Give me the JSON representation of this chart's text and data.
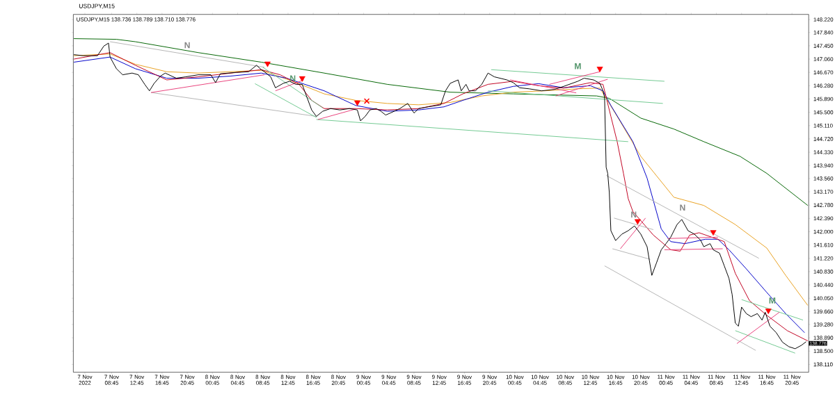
{
  "chart_data": {
    "type": "line",
    "title": "USDJPY,M15",
    "subtitle": "USDJPY,M15 138.736 138.789 138.710 138.776",
    "xlim": [
      "2022-11-07T02:40",
      "2022-11-11T23:24"
    ],
    "ylim": [
      137.88,
      148.37
    ],
    "xticks": [
      {
        "value": "2022-11-07T04:30",
        "label": "7 Nov 2022"
      },
      {
        "value": "2022-11-07T08:45",
        "label": "7 Nov 08:45"
      },
      {
        "value": "2022-11-07T12:45",
        "label": "7 Nov 12:45"
      },
      {
        "value": "2022-11-07T16:45",
        "label": "7 Nov 16:45"
      },
      {
        "value": "2022-11-07T20:45",
        "label": "7 Nov 20:45"
      },
      {
        "value": "2022-11-08T00:45",
        "label": "8 Nov 00:45"
      },
      {
        "value": "2022-11-08T04:45",
        "label": "8 Nov 04:45"
      },
      {
        "value": "2022-11-08T08:45",
        "label": "8 Nov 08:45"
      },
      {
        "value": "2022-11-08T12:45",
        "label": "8 Nov 12:45"
      },
      {
        "value": "2022-11-08T16:45",
        "label": "8 Nov 16:45"
      },
      {
        "value": "2022-11-08T20:45",
        "label": "8 Nov 20:45"
      },
      {
        "value": "2022-11-09T00:45",
        "label": "9 Nov 00:45"
      },
      {
        "value": "2022-11-09T04:45",
        "label": "9 Nov 04:45"
      },
      {
        "value": "2022-11-09T08:45",
        "label": "9 Nov 08:45"
      },
      {
        "value": "2022-11-09T12:45",
        "label": "9 Nov 12:45"
      },
      {
        "value": "2022-11-09T16:45",
        "label": "9 Nov 16:45"
      },
      {
        "value": "2022-11-09T20:45",
        "label": "9 Nov 20:45"
      },
      {
        "value": "2022-11-10T00:45",
        "label": "10 Nov 00:45"
      },
      {
        "value": "2022-11-10T04:45",
        "label": "10 Nov 04:45"
      },
      {
        "value": "2022-11-10T08:45",
        "label": "10 Nov 08:45"
      },
      {
        "value": "2022-11-10T12:45",
        "label": "10 Nov 12:45"
      },
      {
        "value": "2022-11-10T16:45",
        "label": "10 Nov 16:45"
      },
      {
        "value": "2022-11-10T20:45",
        "label": "10 Nov 20:45"
      },
      {
        "value": "2022-11-11T00:45",
        "label": "11 Nov 00:45"
      },
      {
        "value": "2022-11-11T04:45",
        "label": "11 Nov 04:45"
      },
      {
        "value": "2022-11-11T08:45",
        "label": "11 Nov 08:45"
      },
      {
        "value": "2022-11-11T12:45",
        "label": "11 Nov 12:45"
      },
      {
        "value": "2022-11-11T16:45",
        "label": "11 Nov 16:45"
      },
      {
        "value": "2022-11-11T20:45",
        "label": "11 Nov 20:45"
      }
    ],
    "yticks": [
      {
        "value": 138.11,
        "label": "138.110"
      },
      {
        "value": 138.5,
        "label": "138.500"
      },
      {
        "value": 138.89,
        "label": "138.890"
      },
      {
        "value": 139.28,
        "label": "139.280"
      },
      {
        "value": 139.66,
        "label": "139.660"
      },
      {
        "value": 140.05,
        "label": "140.050"
      },
      {
        "value": 140.44,
        "label": "140.440"
      },
      {
        "value": 140.83,
        "label": "140.830"
      },
      {
        "value": 141.22,
        "label": "141.220"
      },
      {
        "value": 141.61,
        "label": "141.610"
      },
      {
        "value": 142.0,
        "label": "142.000"
      },
      {
        "value": 142.39,
        "label": "142.390"
      },
      {
        "value": 142.78,
        "label": "142.780"
      },
      {
        "value": 143.17,
        "label": "143.170"
      },
      {
        "value": 143.56,
        "label": "143.560"
      },
      {
        "value": 143.94,
        "label": "143.940"
      },
      {
        "value": 144.33,
        "label": "144.330"
      },
      {
        "value": 144.72,
        "label": "144.720"
      },
      {
        "value": 145.11,
        "label": "145.110"
      },
      {
        "value": 145.5,
        "label": "145.500"
      },
      {
        "value": 145.89,
        "label": "145.890"
      },
      {
        "value": 146.28,
        "label": "146.280"
      },
      {
        "value": 146.67,
        "label": "146.670"
      },
      {
        "value": 147.06,
        "label": "147.060"
      },
      {
        "value": 147.45,
        "label": "147.450"
      },
      {
        "value": 147.84,
        "label": "147.840"
      },
      {
        "value": 148.22,
        "label": "148.220"
      }
    ],
    "series": [
      {
        "color": "#006400",
        "x": [
          "2022-11-07T02:45",
          "2022-11-07T09:30",
          "2022-11-07T12:30",
          "2022-11-07T22:30",
          "2022-11-08T08:30",
          "2022-11-08T18:30",
          "2022-11-09T04:30",
          "2022-11-09T14:30",
          "2022-11-10T00:30",
          "2022-11-10T13:45",
          "2022-11-10T15:45",
          "2022-11-10T20:45",
          "2022-11-11T02:00",
          "2022-11-11T06:45",
          "2022-11-11T12:30",
          "2022-11-11T16:45",
          "2022-11-11T23:15"
        ],
        "values": [
          147.66,
          147.64,
          147.57,
          147.25,
          146.97,
          146.65,
          146.32,
          146.09,
          146.04,
          145.98,
          145.91,
          145.33,
          145.01,
          144.64,
          144.21,
          143.71,
          142.77
        ]
      },
      {
        "color": "#e8a020",
        "x": [
          "2022-11-07T02:45",
          "2022-11-07T08:30",
          "2022-11-07T12:30",
          "2022-11-07T17:30",
          "2022-11-07T22:30",
          "2022-11-08T08:30",
          "2022-11-08T13:30",
          "2022-11-08T18:30",
          "2022-11-08T23:30",
          "2022-11-09T04:30",
          "2022-11-09T09:30",
          "2022-11-09T14:30",
          "2022-11-09T19:30",
          "2022-11-10T00:30",
          "2022-11-10T05:30",
          "2022-11-10T10:45",
          "2022-11-10T14:15",
          "2022-11-10T17:00",
          "2022-11-10T20:45",
          "2022-11-11T02:00",
          "2022-11-11T06:45",
          "2022-11-11T11:45",
          "2022-11-11T16:45",
          "2022-11-11T19:45",
          "2022-11-11T23:15"
        ],
        "values": [
          147.16,
          147.21,
          146.91,
          146.69,
          146.65,
          146.73,
          146.41,
          146.04,
          145.85,
          145.76,
          145.72,
          145.79,
          145.98,
          146.09,
          146.13,
          146.19,
          146.21,
          145.38,
          144.21,
          143.01,
          142.77,
          142.21,
          141.52,
          140.72,
          139.84
        ]
      },
      {
        "color": "#0000c8",
        "x": [
          "2022-11-07T02:45",
          "2022-11-07T08:30",
          "2022-11-07T12:30",
          "2022-11-07T17:30",
          "2022-11-07T22:30",
          "2022-11-08T03:30",
          "2022-11-08T08:30",
          "2022-11-08T12:30",
          "2022-11-08T18:30",
          "2022-11-08T23:30",
          "2022-11-09T04:30",
          "2022-11-09T09:30",
          "2022-11-09T13:30",
          "2022-11-09T16:30",
          "2022-11-09T20:30",
          "2022-11-10T00:30",
          "2022-11-10T04:30",
          "2022-11-10T08:30",
          "2022-11-10T12:45",
          "2022-11-10T14:45",
          "2022-11-10T16:00",
          "2022-11-10T19:30",
          "2022-11-10T21:45",
          "2022-11-11T00:00",
          "2022-11-11T01:30",
          "2022-11-11T03:45",
          "2022-11-11T07:00",
          "2022-11-11T09:00",
          "2022-11-11T10:45",
          "2022-11-11T13:30",
          "2022-11-11T16:45",
          "2022-11-11T19:45",
          "2022-11-11T22:45"
        ],
        "values": [
          146.97,
          147.12,
          146.78,
          146.5,
          146.5,
          146.56,
          146.65,
          146.5,
          146.13,
          145.7,
          145.53,
          145.57,
          145.66,
          145.85,
          146.09,
          146.26,
          146.34,
          146.22,
          146.28,
          146.13,
          145.7,
          144.64,
          143.57,
          142.08,
          141.71,
          141.65,
          141.78,
          141.78,
          141.47,
          140.91,
          140.22,
          139.6,
          139.04
        ]
      },
      {
        "color": "#c00020",
        "x": [
          "2022-11-07T02:45",
          "2022-11-07T08:30",
          "2022-11-07T12:30",
          "2022-11-07T17:30",
          "2022-11-07T22:30",
          "2022-11-08T08:30",
          "2022-11-08T11:30",
          "2022-11-08T14:30",
          "2022-11-08T16:30",
          "2022-11-08T18:30",
          "2022-11-08T23:30",
          "2022-11-09T04:30",
          "2022-11-09T09:30",
          "2022-11-09T13:30",
          "2022-11-09T16:30",
          "2022-11-09T20:30",
          "2022-11-10T00:30",
          "2022-11-10T04:30",
          "2022-11-10T08:30",
          "2022-11-10T12:45",
          "2022-11-10T14:45",
          "2022-11-10T16:00",
          "2022-11-10T17:00",
          "2022-11-10T18:00",
          "2022-11-10T18:45",
          "2022-11-10T19:30",
          "2022-11-10T22:45",
          "2022-11-11T01:30",
          "2022-11-11T03:00",
          "2022-11-11T04:30",
          "2022-11-11T06:00",
          "2022-11-11T08:00",
          "2022-11-11T10:00",
          "2022-11-11T11:45",
          "2022-11-11T14:00",
          "2022-11-11T16:45",
          "2022-11-11T20:00",
          "2022-11-11T23:15"
        ],
        "values": [
          147.06,
          147.25,
          146.88,
          146.45,
          146.54,
          146.75,
          146.6,
          146.32,
          145.85,
          145.61,
          145.61,
          145.57,
          145.61,
          145.76,
          146.04,
          146.32,
          146.41,
          146.28,
          146.21,
          146.37,
          146.32,
          145.38,
          144.64,
          143.71,
          142.97,
          142.59,
          141.9,
          141.47,
          141.43,
          141.9,
          141.97,
          141.84,
          141.71,
          140.78,
          139.98,
          139.55,
          139.1,
          138.8
        ]
      },
      {
        "name": "N",
        "color": "#b4b4b4",
        "x": [
          "2022-11-07T08:30",
          "2022-11-08T09:00"
        ],
        "values": [
          147.57,
          146.82
        ]
      },
      {
        "color": "#b4b4b4",
        "x": [
          "2022-11-07T15:00",
          "2022-11-08T17:15"
        ],
        "values": [
          146.08,
          145.38
        ]
      },
      {
        "name": "N",
        "color": "#b4b4b4",
        "x": [
          "2022-11-10T15:15",
          "2022-11-11T15:30"
        ],
        "values": [
          143.65,
          141.22
        ]
      },
      {
        "name": "N",
        "color": "#b4b4b4",
        "x": [
          "2022-11-10T16:30",
          "2022-11-10T22:45"
        ],
        "values": [
          142.4,
          142.06
        ]
      },
      {
        "color": "#b4b4b4",
        "x": [
          "2022-11-10T16:15",
          "2022-11-10T22:15"
        ],
        "values": [
          141.5,
          141.19
        ]
      },
      {
        "color": "#b4b4b4",
        "x": [
          "2022-11-10T15:00",
          "2022-11-11T15:00"
        ],
        "values": [
          141.0,
          138.52
        ]
      },
      {
        "name": "N",
        "color": "#70c890",
        "x": [
          "2022-11-08T08:45",
          "2022-11-08T18:15"
        ],
        "values": [
          146.82,
          145.63
        ]
      },
      {
        "color": "#70c890",
        "x": [
          "2022-11-08T07:30",
          "2022-11-08T17:15"
        ],
        "values": [
          146.34,
          145.35
        ]
      },
      {
        "color": "#70c890",
        "x": [
          "2022-11-08T17:15",
          "2022-11-10T18:45"
        ],
        "values": [
          145.29,
          144.64
        ]
      },
      {
        "name": "M",
        "color": "#70c890",
        "x": [
          "2022-11-09T21:00",
          "2022-11-11T00:30"
        ],
        "values": [
          146.75,
          146.41
        ]
      },
      {
        "color": "#70c890",
        "x": [
          "2022-11-09T20:30",
          "2022-11-11T00:15"
        ],
        "values": [
          146.13,
          145.76
        ]
      },
      {
        "name": "M",
        "color": "#70c890",
        "x": [
          "2022-11-11T12:45",
          "2022-11-11T22:30"
        ],
        "values": [
          140.01,
          139.41
        ]
      },
      {
        "color": "#70c890",
        "x": [
          "2022-11-11T11:45",
          "2022-11-11T21:15"
        ],
        "values": [
          139.1,
          138.44
        ]
      },
      {
        "color": "#e8407a",
        "x": [
          "2022-11-07T15:00",
          "2022-11-08T09:00"
        ],
        "values": [
          146.08,
          146.6
        ]
      },
      {
        "color": "#e8407a",
        "x": [
          "2022-11-08T10:45",
          "2022-11-08T15:15"
        ],
        "values": [
          146.13,
          146.45
        ]
      },
      {
        "color": "#e8407a",
        "x": [
          "2022-11-08T17:30",
          "2022-11-08T23:45"
        ],
        "values": [
          145.29,
          145.61
        ]
      },
      {
        "color": "#e8407a",
        "x": [
          "2022-11-10T06:15",
          "2022-11-10T14:15"
        ],
        "values": [
          146.32,
          146.69
        ]
      },
      {
        "color": "#e8407a",
        "x": [
          "2022-11-10T07:15",
          "2022-11-10T15:30"
        ],
        "values": [
          145.98,
          146.47
        ]
      },
      {
        "color": "#e8407a",
        "x": [
          "2022-11-10T00:00",
          "2022-11-10T10:30"
        ],
        "values": [
          146.45,
          146.07
        ]
      },
      {
        "color": "#e8407a",
        "x": [
          "2022-11-10T17:30",
          "2022-11-10T21:30"
        ],
        "values": [
          141.5,
          142.4
        ]
      },
      {
        "color": "#e8407a",
        "x": [
          "2022-11-11T01:00",
          "2022-11-11T09:00"
        ],
        "values": [
          141.8,
          141.84
        ]
      },
      {
        "color": "#e8407a",
        "x": [
          "2022-11-11T00:30",
          "2022-11-11T09:45"
        ],
        "values": [
          141.47,
          141.5
        ]
      },
      {
        "color": "#e8407a",
        "x": [
          "2022-11-11T12:00",
          "2022-11-11T18:45"
        ],
        "values": [
          138.72,
          139.64
        ]
      },
      {
        "color": "#000000",
        "x": [
          "2022-11-07T02:45",
          "2022-11-07T04:15",
          "2022-11-07T06:30",
          "2022-11-07T07:30",
          "2022-11-07T08:15",
          "2022-11-07T08:30",
          "2022-11-07T09:30",
          "2022-11-07T10:30",
          "2022-11-07T12:00",
          "2022-11-07T13:00",
          "2022-11-07T14:00",
          "2022-11-07T14:45",
          "2022-11-07T15:30",
          "2022-11-07T16:30",
          "2022-11-07T17:15",
          "2022-11-07T19:00",
          "2022-11-07T20:30",
          "2022-11-07T22:30",
          "2022-11-08T00:30",
          "2022-11-08T01:15",
          "2022-11-08T02:00",
          "2022-11-08T04:30",
          "2022-11-08T06:30",
          "2022-11-08T07:45",
          "2022-11-08T08:30",
          "2022-11-08T09:00",
          "2022-11-08T10:00",
          "2022-11-08T10:45",
          "2022-11-08T12:00",
          "2022-11-08T13:00",
          "2022-11-08T14:00",
          "2022-11-08T15:00",
          "2022-11-08T15:45",
          "2022-11-08T16:30",
          "2022-11-08T17:15",
          "2022-11-08T18:15",
          "2022-11-08T19:30",
          "2022-11-08T21:00",
          "2022-11-08T22:30",
          "2022-11-08T23:45",
          "2022-11-09T00:15",
          "2022-11-09T01:00",
          "2022-11-09T01:45",
          "2022-11-09T02:45",
          "2022-11-09T03:30",
          "2022-11-09T04:15",
          "2022-11-09T05:00",
          "2022-11-09T06:30",
          "2022-11-09T07:45",
          "2022-11-09T08:45",
          "2022-11-09T09:30",
          "2022-11-09T11:00",
          "2022-11-09T13:00",
          "2022-11-09T13:45",
          "2022-11-09T14:30",
          "2022-11-09T15:45",
          "2022-11-09T16:15",
          "2022-11-09T17:00",
          "2022-11-09T17:30",
          "2022-11-09T18:30",
          "2022-11-09T19:30",
          "2022-11-09T20:30",
          "2022-11-09T21:30",
          "2022-11-09T23:30",
          "2022-11-10T00:30",
          "2022-11-10T01:30",
          "2022-11-10T03:00",
          "2022-11-10T05:00",
          "2022-11-10T07:00",
          "2022-11-10T08:30",
          "2022-11-10T10:45",
          "2022-11-10T11:45",
          "2022-11-10T13:15",
          "2022-11-10T14:15",
          "2022-11-10T14:45",
          "2022-11-10T15:00",
          "2022-11-10T15:15",
          "2022-11-10T15:30",
          "2022-11-10T15:45",
          "2022-11-10T16:00",
          "2022-11-10T16:45",
          "2022-11-10T17:45",
          "2022-11-10T18:45",
          "2022-11-10T19:45",
          "2022-11-10T20:45",
          "2022-11-10T21:45",
          "2022-11-10T22:30",
          "2022-11-10T23:15",
          "2022-11-11T00:00",
          "2022-11-11T00:45",
          "2022-11-11T01:30",
          "2022-11-11T02:30",
          "2022-11-11T03:15",
          "2022-11-11T04:15",
          "2022-11-11T05:15",
          "2022-11-11T06:15",
          "2022-11-11T06:45",
          "2022-11-11T07:45",
          "2022-11-11T08:15",
          "2022-11-11T09:15",
          "2022-11-11T10:00",
          "2022-11-11T10:45",
          "2022-11-11T11:15",
          "2022-11-11T11:45",
          "2022-11-11T12:15",
          "2022-11-11T12:45",
          "2022-11-11T13:30",
          "2022-11-11T14:15",
          "2022-11-11T15:15",
          "2022-11-11T16:00",
          "2022-11-11T16:30",
          "2022-11-11T17:15",
          "2022-11-11T18:15",
          "2022-11-11T19:15",
          "2022-11-11T20:15",
          "2022-11-11T21:15",
          "2022-11-11T22:15",
          "2022-11-11T23:00"
        ],
        "values": [
          147.19,
          147.16,
          147.16,
          147.44,
          147.53,
          147.12,
          146.78,
          146.6,
          146.65,
          146.6,
          146.32,
          146.13,
          146.35,
          146.56,
          146.65,
          146.5,
          146.54,
          146.6,
          146.6,
          146.37,
          146.63,
          146.67,
          146.69,
          146.88,
          146.75,
          146.69,
          146.54,
          146.22,
          146.35,
          146.41,
          146.32,
          146.32,
          145.94,
          145.57,
          145.38,
          145.53,
          145.61,
          145.57,
          145.61,
          145.57,
          145.25,
          145.38,
          145.57,
          145.61,
          145.53,
          145.42,
          145.48,
          145.61,
          145.76,
          145.48,
          145.61,
          145.66,
          145.72,
          146.13,
          146.35,
          146.45,
          146.13,
          146.32,
          146.13,
          146.13,
          146.32,
          146.65,
          146.54,
          146.45,
          146.37,
          146.22,
          146.19,
          146.13,
          146.17,
          146.26,
          146.41,
          146.5,
          146.45,
          146.35,
          146.13,
          145.94,
          143.89,
          143.71,
          143.15,
          142.03,
          141.74,
          141.93,
          142.03,
          142.17,
          141.93,
          141.56,
          140.72,
          141.09,
          141.47,
          141.65,
          141.84,
          142.21,
          142.36,
          142.03,
          141.93,
          141.75,
          141.56,
          141.65,
          141.47,
          141.37,
          141.0,
          140.63,
          140.16,
          139.32,
          139.23,
          139.79,
          139.6,
          139.51,
          139.6,
          139.41,
          139.64,
          139.23,
          139.04,
          138.76,
          138.63,
          138.57,
          138.67,
          138.776
        ],
        "value_labels": [
          null,
          null,
          null,
          null,
          null,
          null,
          null,
          null,
          null,
          null,
          null,
          null,
          null,
          null,
          null,
          null,
          null,
          null,
          null,
          null,
          null,
          null,
          null,
          null,
          null,
          null,
          null,
          null,
          null,
          null,
          null,
          null,
          null,
          null,
          null,
          null,
          null,
          null,
          null,
          null,
          null,
          null,
          null,
          null,
          null,
          null,
          null,
          null,
          null,
          null,
          null,
          null,
          null,
          null,
          null,
          null,
          null,
          null,
          null,
          null,
          null,
          null,
          null,
          null,
          null,
          null,
          null,
          null,
          null,
          null,
          null,
          null,
          null,
          null,
          null,
          null,
          null,
          null,
          null,
          null,
          null,
          null,
          null,
          null,
          null,
          null,
          null,
          null,
          null,
          null,
          null,
          null,
          null,
          null,
          null,
          null,
          null,
          null,
          null,
          null,
          null,
          null,
          null,
          null,
          null,
          null,
          null,
          null,
          null,
          null,
          null,
          null,
          null,
          null,
          null,
          null,
          null,
          "138.776"
        ]
      },
      {
        "type": "scatter",
        "marker": "triangle",
        "color": "#ff0000",
        "x": [
          "2022-11-08T09:30",
          "2022-11-08T15:00",
          "2022-11-08T23:45",
          "2022-11-10T14:15",
          "2022-11-10T20:15",
          "2022-11-11T08:15",
          "2022-11-11T17:00"
        ],
        "values": [
          146.93,
          146.5,
          145.79,
          146.78,
          142.31,
          141.99,
          139.69
        ]
      },
      {
        "type": "scatter",
        "marker": "cross",
        "color": "#ff0000",
        "x": [
          "2022-11-09T01:15"
        ],
        "values": [
          145.83
        ]
      }
    ]
  }
}
